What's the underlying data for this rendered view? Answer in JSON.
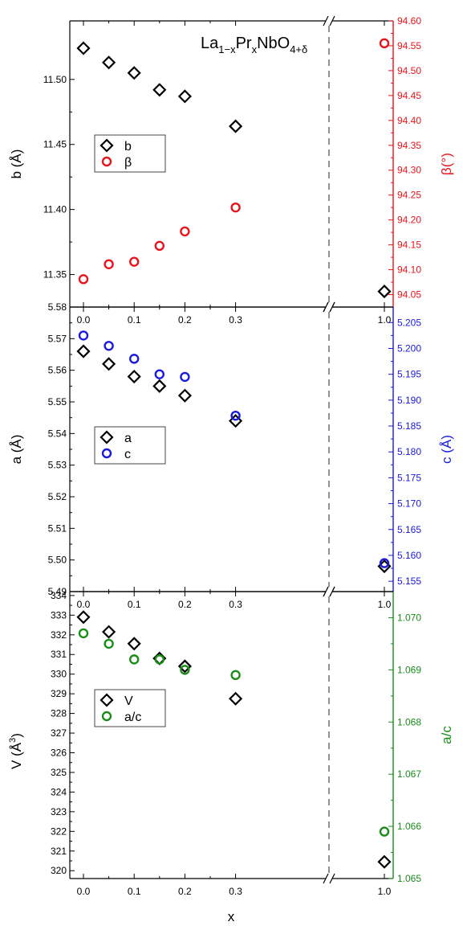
{
  "figure_title": {
    "base": "La",
    "sub1": "1−x",
    "mid": "Pr",
    "sub2": "x",
    "tail": "NbO",
    "sub3": "4+δ"
  },
  "chart_data": [
    {
      "type": "scatter",
      "panel": "top",
      "x_categories": [
        "0.0",
        "0.1",
        "0.2",
        "0.3",
        "1.0"
      ],
      "x_axis_break": "between 0.3 and 1.0",
      "left_axis": {
        "label": "b (Å)",
        "ylim": [
          11.325,
          11.545
        ],
        "ticks": [
          11.35,
          11.4,
          11.45,
          11.5
        ],
        "tick_labels": [
          "11.35",
          "11.40",
          "11.45",
          "11.50"
        ],
        "color": "#000000"
      },
      "right_axis": {
        "label": "β(°)",
        "ylim": [
          94.025,
          94.6
        ],
        "ticks": [
          94.05,
          94.1,
          94.15,
          94.2,
          94.25,
          94.3,
          94.35,
          94.4,
          94.45,
          94.5,
          94.55,
          94.6
        ],
        "tick_labels": [
          "94.05",
          "94.10",
          "94.15",
          "94.20",
          "94.25",
          "94.30",
          "94.35",
          "94.40",
          "94.45",
          "94.50",
          "94.55",
          "94.60"
        ],
        "color": "#e8141c"
      },
      "series": [
        {
          "name": "b",
          "marker": "diamond",
          "color": "#000000",
          "axis": "left",
          "x": [
            0.0,
            0.05,
            0.1,
            0.15,
            0.2,
            0.3,
            1.0
          ],
          "y": [
            11.524,
            11.513,
            11.505,
            11.492,
            11.487,
            11.464,
            11.337
          ]
        },
        {
          "name": "β",
          "marker": "circle",
          "color": "#e8141c",
          "axis": "right",
          "x": [
            0.0,
            0.05,
            0.1,
            0.15,
            0.2,
            0.3,
            1.0
          ],
          "y": [
            94.081,
            94.111,
            94.116,
            94.148,
            94.177,
            94.225,
            94.555
          ]
        }
      ],
      "legend_position": "left, mid-height"
    },
    {
      "type": "scatter",
      "panel": "middle",
      "x_categories": [
        "0.0",
        "0.1",
        "0.2",
        "0.3",
        "1.0"
      ],
      "left_axis": {
        "label": "a (Å)",
        "ylim": [
          5.49,
          5.58
        ],
        "ticks": [
          5.49,
          5.5,
          5.51,
          5.52,
          5.53,
          5.54,
          5.55,
          5.56,
          5.57,
          5.58
        ],
        "tick_labels": [
          "5.49",
          "5.50",
          "5.51",
          "5.52",
          "5.53",
          "5.54",
          "5.55",
          "5.56",
          "5.57",
          "5.58"
        ],
        "color": "#000000"
      },
      "right_axis": {
        "label": "c (Å)",
        "ylim": [
          5.153,
          5.208
        ],
        "ticks": [
          5.155,
          5.16,
          5.165,
          5.17,
          5.175,
          5.18,
          5.185,
          5.19,
          5.195,
          5.2,
          5.205
        ],
        "tick_labels": [
          "5.155",
          "5.160",
          "5.165",
          "5.170",
          "5.175",
          "5.180",
          "5.185",
          "5.190",
          "5.195",
          "5.200",
          "5.205"
        ],
        "color": "#1a1adc"
      },
      "series": [
        {
          "name": "a",
          "marker": "diamond",
          "color": "#000000",
          "axis": "left",
          "x": [
            0.0,
            0.05,
            0.1,
            0.15,
            0.2,
            0.3,
            1.0
          ],
          "y": [
            5.566,
            5.562,
            5.558,
            5.555,
            5.552,
            5.544,
            5.498
          ]
        },
        {
          "name": "c",
          "marker": "circle",
          "color": "#1a1adc",
          "axis": "right",
          "x": [
            0.0,
            0.05,
            0.1,
            0.15,
            0.2,
            0.3,
            1.0
          ],
          "y": [
            5.2025,
            5.2005,
            5.198,
            5.195,
            5.1945,
            5.187,
            5.1585
          ]
        }
      ],
      "legend_position": "left, mid-height"
    },
    {
      "type": "scatter",
      "panel": "bottom",
      "x_label": "x",
      "x_categories": [
        "0.0",
        "0.1",
        "0.2",
        "0.3",
        "1.0"
      ],
      "left_axis": {
        "label_main": "V",
        "label_unit": "Å",
        "label_exp": "3",
        "ylim": [
          319.6,
          334.2
        ],
        "ticks": [
          320,
          321,
          322,
          323,
          324,
          325,
          326,
          327,
          328,
          329,
          330,
          331,
          332,
          333,
          334
        ],
        "tick_labels": [
          "320",
          "321",
          "322",
          "323",
          "324",
          "325",
          "326",
          "327",
          "328",
          "329",
          "330",
          "331",
          "332",
          "333",
          "334"
        ],
        "color": "#000000"
      },
      "right_axis": {
        "label": "a/c",
        "ylim": [
          1.065,
          1.0705
        ],
        "ticks": [
          1.065,
          1.066,
          1.067,
          1.068,
          1.069,
          1.07
        ],
        "tick_labels": [
          "1.065",
          "1.066",
          "1.067",
          "1.068",
          "1.069",
          "1.070"
        ],
        "color": "#1a8c1a"
      },
      "series": [
        {
          "name": "V",
          "marker": "diamond",
          "color": "#000000",
          "axis": "left",
          "x": [
            0.0,
            0.05,
            0.1,
            0.15,
            0.2,
            0.3,
            1.0
          ],
          "y": [
            332.9,
            332.15,
            331.55,
            330.8,
            330.4,
            328.75,
            320.45
          ]
        },
        {
          "name": "a/c",
          "marker": "circle",
          "color": "#1a8c1a",
          "axis": "right",
          "x": [
            0.0,
            0.05,
            0.1,
            0.15,
            0.2,
            0.3,
            1.0
          ],
          "y": [
            1.0697,
            1.0695,
            1.0692,
            1.0692,
            1.069,
            1.0689,
            1.0659
          ]
        }
      ],
      "legend_position": "left, upper-middle"
    }
  ]
}
